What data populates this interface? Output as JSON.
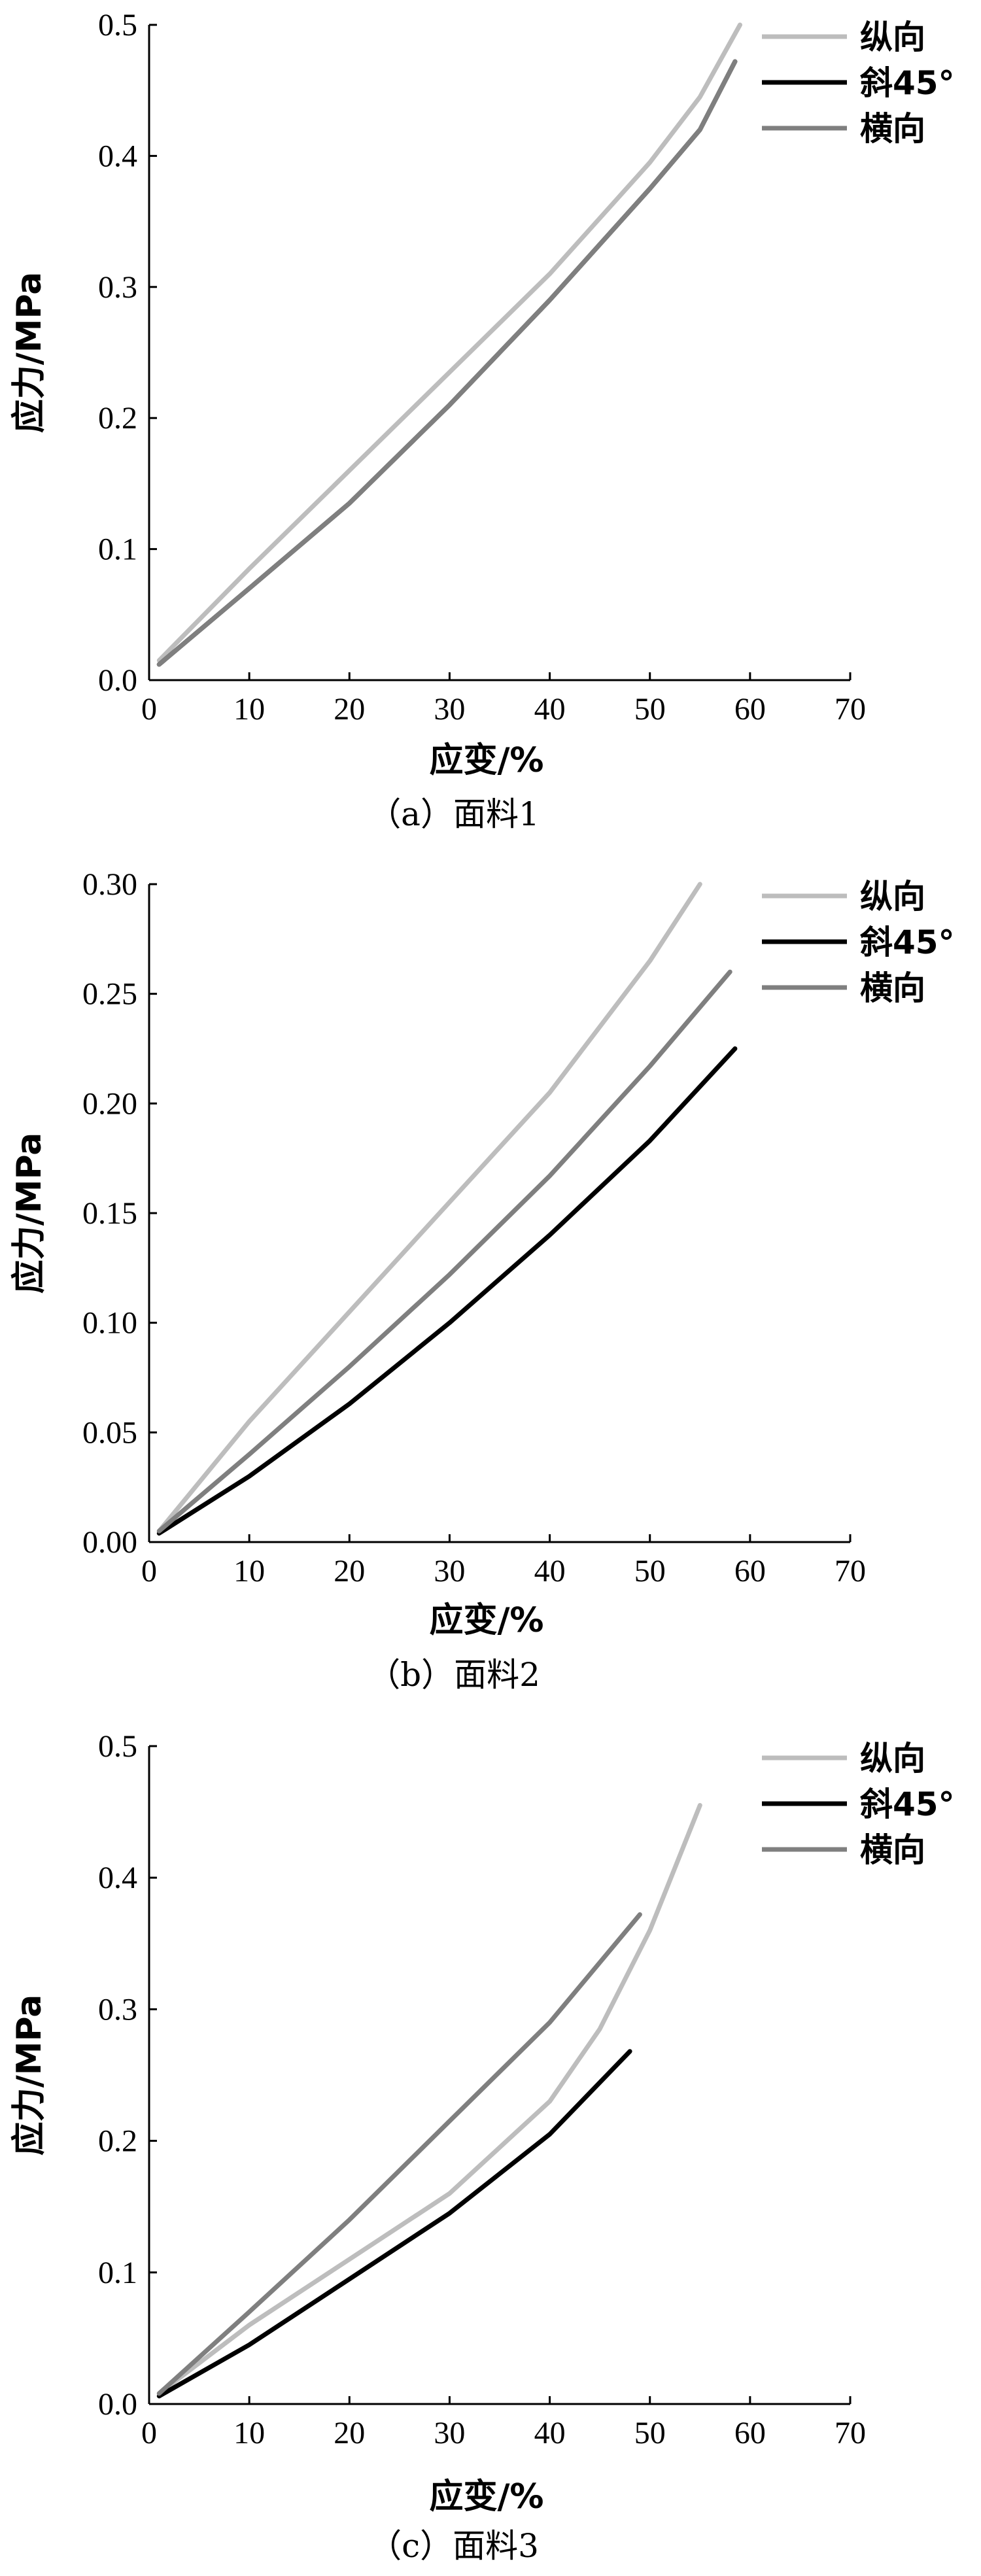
{
  "chart_data": [
    {
      "type": "line",
      "caption": "（a）面料1",
      "xlabel": "应变/%",
      "ylabel": "应力/MPa",
      "xlim": [
        0,
        70
      ],
      "ylim": [
        0,
        0.5
      ],
      "xticks": [
        "0",
        "10",
        "20",
        "30",
        "40",
        "50",
        "60",
        "70"
      ],
      "yticks": [
        "0.0",
        "0.1",
        "0.2",
        "0.3",
        "0.4",
        "0.5"
      ],
      "legend_position": "top-right",
      "series": [
        {
          "name": "纵向",
          "color": "#bdbdbd",
          "x": [
            1,
            10,
            20,
            30,
            40,
            50,
            55,
            59
          ],
          "y": [
            0.015,
            0.085,
            0.16,
            0.235,
            0.31,
            0.395,
            0.445,
            0.5
          ]
        },
        {
          "name": "斜45°",
          "color": "#000000",
          "x": [
            1,
            10,
            20,
            30,
            40,
            50,
            55,
            58.5
          ],
          "y": [
            0.012,
            0.07,
            0.135,
            0.21,
            0.29,
            0.375,
            0.42,
            0.472
          ]
        },
        {
          "name": "横向",
          "color": "#7f7f7f",
          "x": [
            1,
            10,
            20,
            30,
            40,
            50,
            55,
            58.5
          ],
          "y": [
            0.012,
            0.07,
            0.135,
            0.21,
            0.29,
            0.375,
            0.42,
            0.472
          ]
        }
      ]
    },
    {
      "type": "line",
      "caption": "（b）面料2",
      "xlabel": "应变/%",
      "ylabel": "应力/MPa",
      "xlim": [
        0,
        70
      ],
      "ylim": [
        0,
        0.3
      ],
      "xticks": [
        "0",
        "10",
        "20",
        "30",
        "40",
        "50",
        "60",
        "70"
      ],
      "yticks": [
        "0.00",
        "0.05",
        "0.10",
        "0.15",
        "0.20",
        "0.25",
        "0.30"
      ],
      "legend_position": "top-right",
      "series": [
        {
          "name": "纵向",
          "color": "#bdbdbd",
          "x": [
            1,
            10,
            20,
            30,
            40,
            50,
            55
          ],
          "y": [
            0.005,
            0.055,
            0.105,
            0.155,
            0.205,
            0.265,
            0.3
          ]
        },
        {
          "name": "斜45°",
          "color": "#000000",
          "x": [
            1,
            10,
            20,
            30,
            40,
            50,
            58.5
          ],
          "y": [
            0.004,
            0.03,
            0.063,
            0.1,
            0.14,
            0.183,
            0.225
          ]
        },
        {
          "name": "横向",
          "color": "#7f7f7f",
          "x": [
            1,
            10,
            20,
            30,
            40,
            50,
            58
          ],
          "y": [
            0.005,
            0.04,
            0.08,
            0.122,
            0.167,
            0.217,
            0.26
          ]
        }
      ]
    },
    {
      "type": "line",
      "caption": "（c）面料3",
      "xlabel": "应变/%",
      "ylabel": "应力/MPa",
      "xlim": [
        0,
        70
      ],
      "ylim": [
        0,
        0.5
      ],
      "xticks": [
        "0",
        "10",
        "20",
        "30",
        "40",
        "50",
        "60",
        "70"
      ],
      "yticks": [
        "0.0",
        "0.1",
        "0.2",
        "0.3",
        "0.4",
        "0.5"
      ],
      "legend_position": "top-right",
      "series": [
        {
          "name": "纵向",
          "color": "#bdbdbd",
          "x": [
            1,
            10,
            20,
            30,
            40,
            45,
            50,
            55
          ],
          "y": [
            0.008,
            0.06,
            0.11,
            0.16,
            0.23,
            0.285,
            0.36,
            0.455
          ]
        },
        {
          "name": "斜45°",
          "color": "#000000",
          "x": [
            1,
            10,
            20,
            30,
            40,
            48
          ],
          "y": [
            0.006,
            0.045,
            0.095,
            0.145,
            0.205,
            0.268
          ]
        },
        {
          "name": "横向",
          "color": "#7f7f7f",
          "x": [
            1,
            10,
            20,
            30,
            40,
            49
          ],
          "y": [
            0.008,
            0.07,
            0.14,
            0.215,
            0.29,
            0.372
          ]
        }
      ]
    }
  ]
}
